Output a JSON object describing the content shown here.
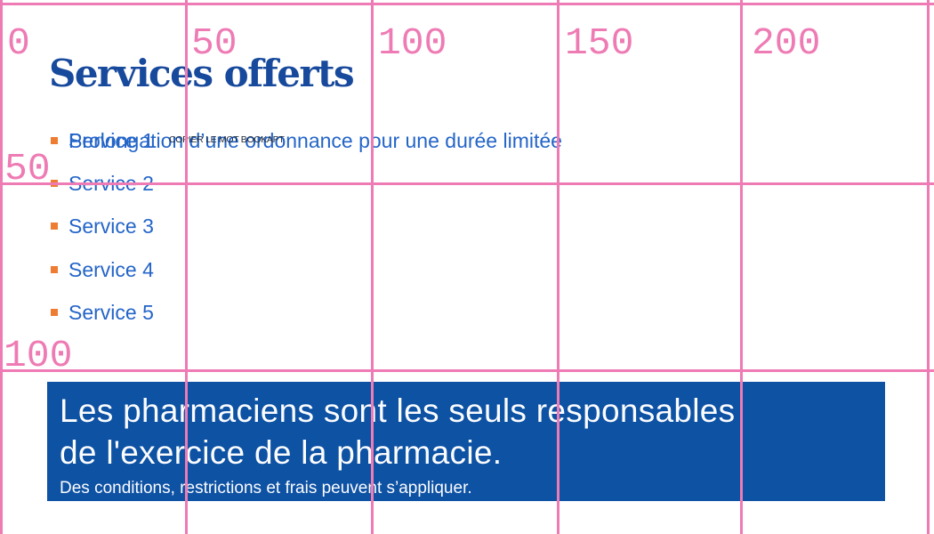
{
  "grid_overlay": {
    "color": "#ee7bb4",
    "x_axis_labels": [
      "0",
      "50",
      "100",
      "150",
      "200"
    ],
    "y_axis_labels": [
      "50",
      "100"
    ]
  },
  "content": {
    "heading": "Services offerts",
    "services": {
      "items": [
        {
          "placeholder": "Service 1",
          "value": "Prolongation d’une ordonnance pour une durée limitée",
          "tiny_label": "COPIER LE MOT BOOKAPT"
        },
        {
          "placeholder": "Service 2"
        },
        {
          "placeholder": "Service 3"
        },
        {
          "placeholder": "Service 4"
        },
        {
          "placeholder": "Service 5"
        }
      ]
    },
    "banner": {
      "line1": "Les pharmaciens sont les seuls responsables",
      "line2": "de l'exercice de la pharmacie.",
      "note": "Des conditions, restrictions et frais peuvent s’appliquer."
    },
    "colors": {
      "heading": "#17499c",
      "link": "#2465c8",
      "bullet": "#ee7d33",
      "banner_bg": "#0e52a4",
      "grid_pink": "#ee7bb4"
    }
  }
}
